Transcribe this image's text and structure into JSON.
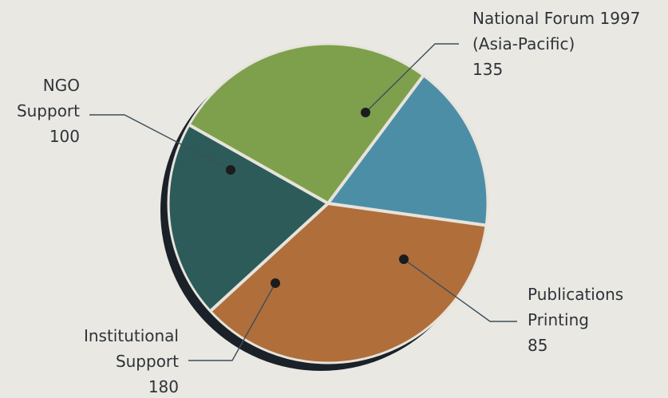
{
  "chart_data": {
    "type": "pie",
    "title": "",
    "legend": "none",
    "slices": [
      {
        "label_lines": [
          "National Forum 1997",
          "(Asia-Pacific)"
        ],
        "value": 135,
        "value_text": "135",
        "color": "#7ea04d"
      },
      {
        "label_lines": [
          "Publications",
          "Printing"
        ],
        "value": 85,
        "value_text": "85",
        "color": "#4d8ea7"
      },
      {
        "label_lines": [
          "Institutional",
          "Support"
        ],
        "value": 180,
        "value_text": "180",
        "color": "#b06e3b"
      },
      {
        "label_lines": [
          "NGO",
          "Support"
        ],
        "value": 100,
        "value_text": "100",
        "color": "#2d5b5a"
      }
    ]
  },
  "colors": {
    "background": "#e9e8e3",
    "shadow": "#1b2128",
    "divider": "#e6e4dc",
    "label_text": "#2f3338"
  }
}
